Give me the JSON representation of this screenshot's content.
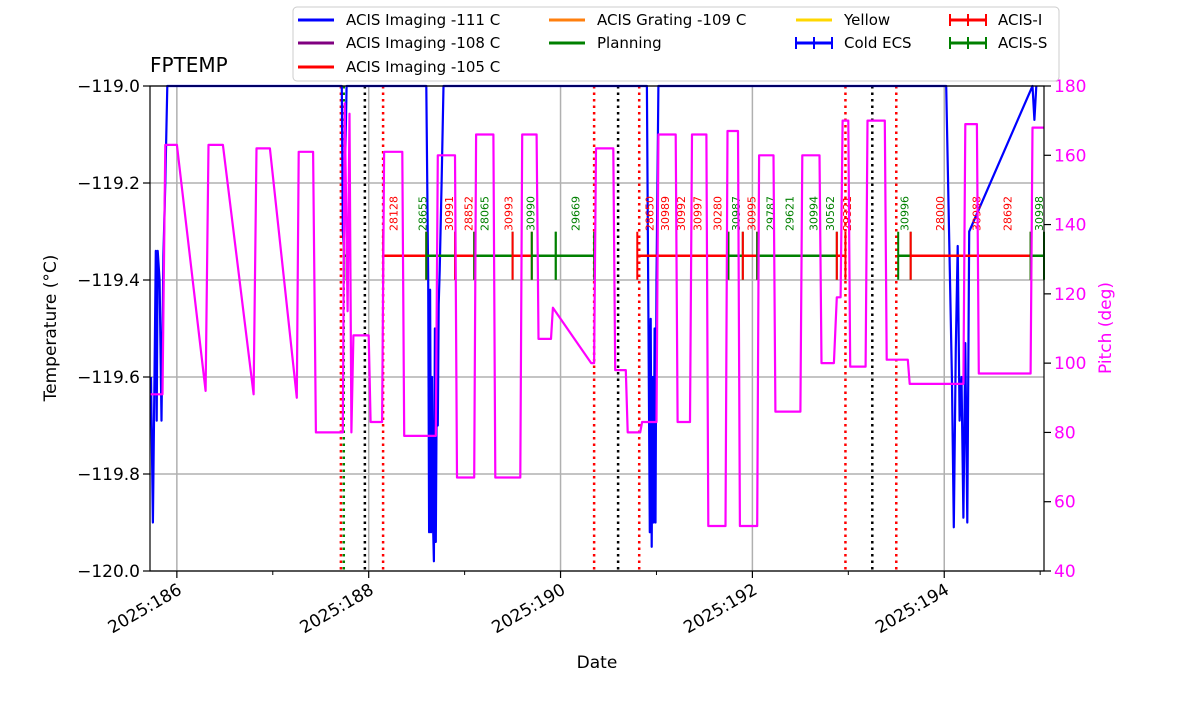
{
  "chart_data": {
    "type": "line",
    "title": "FPTEMP",
    "xlabel": "Date",
    "ylabel": "Temperature (°C)",
    "y2label": "Pitch (deg)",
    "xlim": [
      185.72,
      195.04
    ],
    "ylim": [
      -120.0,
      -119.0
    ],
    "y2lim": [
      40,
      180
    ],
    "grid": true,
    "xticks": [
      {
        "value": 186,
        "label": "2025:186"
      },
      {
        "value": 188,
        "label": "2025:188"
      },
      {
        "value": 190,
        "label": "2025:190"
      },
      {
        "value": 192,
        "label": "2025:192"
      },
      {
        "value": 194,
        "label": "2025:194"
      }
    ],
    "yticks": [
      {
        "value": -119.0,
        "label": "−119.0"
      },
      {
        "value": -119.2,
        "label": "−119.2"
      },
      {
        "value": -119.4,
        "label": "−119.4"
      },
      {
        "value": -119.6,
        "label": "−119.6"
      },
      {
        "value": -119.8,
        "label": "−119.8"
      },
      {
        "value": -120.0,
        "label": "−120.0"
      }
    ],
    "y2ticks": [
      40,
      60,
      80,
      100,
      120,
      140,
      160,
      180
    ],
    "legend": {
      "placement": "top",
      "entries": [
        {
          "label": "ACIS Imaging -111 C",
          "color": "#0000ff",
          "kind": "line"
        },
        {
          "label": "ACIS Imaging -108 C",
          "color": "#800080",
          "kind": "line"
        },
        {
          "label": "ACIS Imaging -105 C",
          "color": "#ff0000",
          "kind": "line"
        },
        {
          "label": "ACIS Grating -109 C",
          "color": "#ff7f0e",
          "kind": "line"
        },
        {
          "label": "Planning",
          "color": "#008000",
          "kind": "line"
        },
        {
          "label": "Yellow",
          "color": "#ffd700",
          "kind": "line"
        },
        {
          "label": "Cold ECS",
          "color": "#0000ff",
          "kind": "errorbar"
        },
        {
          "label": "ACIS-I",
          "color": "#ff0000",
          "kind": "errorbar"
        },
        {
          "label": "ACIS-S",
          "color": "#008000",
          "kind": "errorbar"
        }
      ]
    },
    "series": [
      {
        "name": "ACIS Imaging -111 C",
        "axis": "left",
        "color": "#0000ff",
        "x": [
          185.73,
          185.75,
          185.77,
          185.78,
          185.79,
          185.8,
          185.82,
          185.84,
          185.86,
          185.88,
          185.9,
          185.92,
          185.94,
          187.72,
          187.73,
          187.74,
          187.75,
          187.76,
          187.77,
          187.78,
          188.6,
          188.62,
          188.63,
          188.64,
          188.65,
          188.66,
          188.67,
          188.68,
          188.69,
          188.7,
          188.71,
          188.72,
          188.73,
          188.74,
          188.76,
          188.78,
          188.8,
          188.82,
          190.9,
          190.92,
          190.93,
          190.94,
          190.95,
          190.96,
          190.97,
          190.98,
          190.99,
          191.0,
          191.02,
          191.04,
          194.02,
          194.08,
          194.1,
          194.12,
          194.14,
          194.16,
          194.18,
          194.2,
          194.22,
          194.24,
          194.26,
          194.92,
          194.94,
          194.96
        ],
        "y": [
          -119.6,
          -119.9,
          -119.54,
          -119.34,
          -119.69,
          -119.34,
          -119.4,
          -119.69,
          -119.35,
          -119.2,
          -119.0,
          -119.0,
          -119.0,
          -119.0,
          -119.3,
          -119.33,
          -119.2,
          -119.1,
          -119.0,
          -119.0,
          -119.0,
          -119.4,
          -119.92,
          -119.42,
          -119.92,
          -119.6,
          -119.9,
          -119.98,
          -119.5,
          -119.94,
          -119.6,
          -119.7,
          -119.45,
          -119.38,
          -119.2,
          -119.0,
          -119.0,
          -119.0,
          -119.0,
          -119.6,
          -119.92,
          -119.48,
          -119.95,
          -119.6,
          -119.9,
          -119.5,
          -119.9,
          -119.4,
          -119.0,
          -119.0,
          -119.0,
          -119.6,
          -119.91,
          -119.54,
          -119.33,
          -119.69,
          -119.6,
          -119.89,
          -119.53,
          -119.9,
          -119.3,
          -119.0,
          -119.07,
          -119.0
        ]
      },
      {
        "name": "Pitch",
        "axis": "right",
        "color": "#ff00ff",
        "x": [
          185.72,
          185.85,
          185.88,
          186.0,
          186.3,
          186.33,
          186.48,
          186.8,
          186.83,
          186.97,
          187.25,
          187.27,
          187.42,
          187.45,
          187.73,
          187.75,
          187.78,
          187.8,
          187.82,
          187.84,
          187.86,
          188.0,
          188.02,
          188.14,
          188.16,
          188.35,
          188.37,
          188.7,
          188.72,
          188.9,
          188.92,
          189.1,
          189.12,
          189.3,
          189.32,
          189.58,
          189.6,
          189.75,
          189.77,
          189.9,
          189.92,
          190.32,
          190.35,
          190.37,
          190.55,
          190.57,
          190.68,
          190.7,
          190.83,
          190.85,
          191.0,
          191.02,
          191.2,
          191.22,
          191.35,
          191.37,
          191.52,
          191.54,
          191.72,
          191.74,
          191.85,
          191.87,
          192.05,
          192.07,
          192.22,
          192.24,
          192.5,
          192.52,
          192.7,
          192.72,
          192.85,
          192.88,
          192.92,
          192.94,
          192.96,
          193.0,
          193.02,
          193.18,
          193.2,
          193.38,
          193.4,
          193.55,
          193.57,
          193.62,
          193.64,
          194.2,
          194.22,
          194.34,
          194.36,
          194.9,
          194.92,
          195.04
        ],
        "y": [
          91,
          91,
          163,
          163,
          92,
          163,
          163,
          91,
          162,
          162,
          90,
          161,
          161,
          80,
          80,
          175,
          115,
          172,
          80,
          108,
          108,
          108,
          83,
          83,
          161,
          161,
          79,
          79,
          160,
          160,
          67,
          67,
          166,
          166,
          67,
          67,
          166,
          166,
          107,
          107,
          116,
          100,
          100,
          162,
          162,
          98,
          98,
          80,
          80,
          83,
          83,
          166,
          166,
          83,
          83,
          166,
          166,
          53,
          53,
          167,
          167,
          53,
          53,
          160,
          160,
          86,
          86,
          160,
          160,
          100,
          100,
          119,
          119,
          170,
          170,
          170,
          99,
          99,
          170,
          170,
          101,
          101,
          101,
          101,
          94,
          94,
          169,
          169,
          97,
          97,
          168,
          168
        ]
      },
      {
        "name": "ACIS-I",
        "axis": "left",
        "color": "#ff0000",
        "x": [
          188.2,
          189.98,
          190.82,
          192.88
        ],
        "y": [
          -119.35,
          -119.35,
          -119.35,
          -119.35
        ]
      },
      {
        "name": "ACIS-S",
        "axis": "left",
        "color": "#008000",
        "x": [
          188.4,
          189.98,
          190.3,
          192.12
        ],
        "y": [
          -119.35,
          -119.35,
          -119.35,
          -119.35
        ]
      }
    ],
    "segments": [
      {
        "series": "ACIS-S",
        "color": "#008000",
        "x0": 187.74,
        "x1": 187.77,
        "y": -119.35
      },
      {
        "series": "ACIS-I",
        "color": "#ff0000",
        "x0": 188.15,
        "x1": 188.6,
        "y": -119.35
      },
      {
        "series": "ACIS-S",
        "color": "#008000",
        "x0": 188.6,
        "x1": 188.9,
        "y": -119.35
      },
      {
        "series": "ACIS-I",
        "color": "#ff0000",
        "x0": 188.9,
        "x1": 189.1,
        "y": -119.35
      },
      {
        "series": "ACIS-S",
        "color": "#008000",
        "x0": 189.1,
        "x1": 189.5,
        "y": -119.35
      },
      {
        "series": "ACIS-I",
        "color": "#ff0000",
        "x0": 189.5,
        "x1": 189.7,
        "y": -119.35
      },
      {
        "series": "ACIS-S",
        "color": "#008000",
        "x0": 189.7,
        "x1": 189.95,
        "y": -119.35
      },
      {
        "series": "ACIS-S",
        "color": "#008000",
        "x0": 189.95,
        "x1": 190.35,
        "y": -119.35
      },
      {
        "series": "ACIS-I",
        "color": "#ff0000",
        "x0": 190.8,
        "x1": 191.75,
        "y": -119.35
      },
      {
        "series": "ACIS-S",
        "color": "#008000",
        "x0": 191.75,
        "x1": 191.9,
        "y": -119.35
      },
      {
        "series": "ACIS-I",
        "color": "#ff0000",
        "x0": 191.9,
        "x1": 192.05,
        "y": -119.35
      },
      {
        "series": "ACIS-S",
        "color": "#008000",
        "x0": 192.05,
        "x1": 192.88,
        "y": -119.35
      },
      {
        "series": "ACIS-I",
        "color": "#ff0000",
        "x0": 192.88,
        "x1": 192.97,
        "y": -119.35
      },
      {
        "series": "ACIS-S",
        "color": "#008000",
        "x0": 193.52,
        "x1": 193.65,
        "y": -119.35
      },
      {
        "series": "ACIS-I",
        "color": "#ff0000",
        "x0": 193.65,
        "x1": 194.9,
        "y": -119.35
      },
      {
        "series": "ACIS-S",
        "color": "#008000",
        "x0": 194.9,
        "x1": 195.04,
        "y": -119.35
      }
    ],
    "vlines": [
      {
        "x": 187.71,
        "color": "#ff0000"
      },
      {
        "x": 187.74,
        "color": "#008000"
      },
      {
        "x": 187.96,
        "color": "#000000"
      },
      {
        "x": 188.15,
        "color": "#ff0000"
      },
      {
        "x": 190.35,
        "color": "#ff0000"
      },
      {
        "x": 190.6,
        "color": "#000000"
      },
      {
        "x": 190.82,
        "color": "#ff0000"
      },
      {
        "x": 192.97,
        "color": "#ff0000"
      },
      {
        "x": 193.25,
        "color": "#000000"
      },
      {
        "x": 193.5,
        "color": "#ff0000"
      }
    ],
    "obsid_labels": [
      {
        "x": 188.3,
        "text": "28128",
        "color": "#ff0000"
      },
      {
        "x": 188.6,
        "text": "28655",
        "color": "#008000"
      },
      {
        "x": 188.88,
        "text": "30991",
        "color": "#ff0000"
      },
      {
        "x": 189.08,
        "text": "28852",
        "color": "#ff0000"
      },
      {
        "x": 189.25,
        "text": "28065",
        "color": "#008000"
      },
      {
        "x": 189.5,
        "text": "30993",
        "color": "#ff0000"
      },
      {
        "x": 189.73,
        "text": "30990",
        "color": "#008000"
      },
      {
        "x": 190.2,
        "text": "29669",
        "color": "#008000"
      },
      {
        "x": 190.97,
        "text": "28650",
        "color": "#ff0000"
      },
      {
        "x": 191.13,
        "text": "30989",
        "color": "#ff0000"
      },
      {
        "x": 191.3,
        "text": "30992",
        "color": "#ff0000"
      },
      {
        "x": 191.47,
        "text": "30997",
        "color": "#ff0000"
      },
      {
        "x": 191.68,
        "text": "30280",
        "color": "#ff0000"
      },
      {
        "x": 191.87,
        "text": "30987",
        "color": "#008000"
      },
      {
        "x": 192.03,
        "text": "30995",
        "color": "#ff0000"
      },
      {
        "x": 192.23,
        "text": "29787",
        "color": "#008000"
      },
      {
        "x": 192.43,
        "text": "29621",
        "color": "#008000"
      },
      {
        "x": 192.68,
        "text": "30994",
        "color": "#008000"
      },
      {
        "x": 192.85,
        "text": "30562",
        "color": "#008000"
      },
      {
        "x": 193.03,
        "text": "29321",
        "color": "#ff0000"
      },
      {
        "x": 193.63,
        "text": "30996",
        "color": "#008000"
      },
      {
        "x": 194.0,
        "text": "28000",
        "color": "#ff0000"
      },
      {
        "x": 194.38,
        "text": "30988",
        "color": "#ff0000"
      },
      {
        "x": 194.7,
        "text": "28692",
        "color": "#ff0000"
      },
      {
        "x": 195.03,
        "text": "30998",
        "color": "#008000"
      }
    ]
  }
}
